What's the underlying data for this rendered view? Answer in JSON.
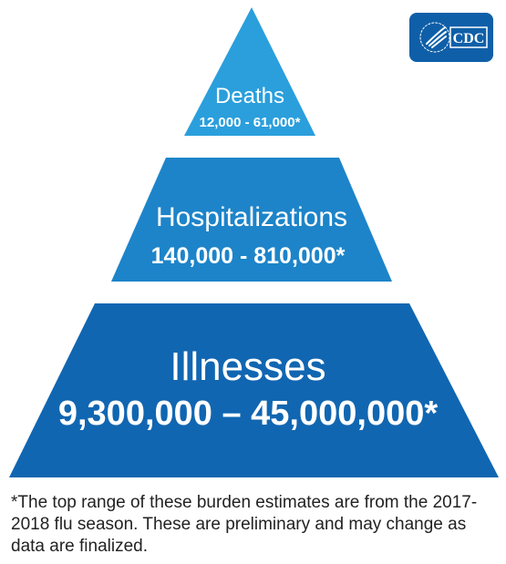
{
  "colors": {
    "top_tier": "#2a9fdc",
    "middle_tier": "#1d84c9",
    "bottom_tier": "#1166b1",
    "logo_bg": "#0f5fa8",
    "footnote_text": "#222222"
  },
  "logo": {
    "text": "CDC",
    "icon": "hhs-eagle-icon"
  },
  "pyramid": {
    "top": {
      "title": "Deaths",
      "range": "12,000 - 61,000*"
    },
    "middle": {
      "title": "Hospitalizations",
      "range": "140,000 - 810,000*"
    },
    "bottom": {
      "title": "Illnesses",
      "range": "9,300,000 – 45,000,000*"
    }
  },
  "footnote": {
    "text": "*The top range of these burden estimates are from the 2017-2018 flu season. These are preliminary and may change as data are finalized."
  }
}
